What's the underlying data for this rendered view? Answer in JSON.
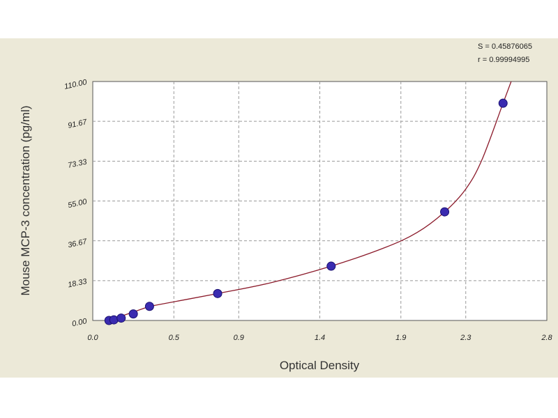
{
  "chart_data": {
    "type": "scatter",
    "xlabel": "Optical Density",
    "ylabel": "Mouse MCP-3 concentration (pg/ml)",
    "xlim": [
      0.0,
      2.8
    ],
    "ylim": [
      0.0,
      110.0
    ],
    "x_ticks": [
      "0.0",
      "0.5",
      "0.9",
      "1.4",
      "1.9",
      "2.3",
      "2.8"
    ],
    "y_ticks": [
      "0.00",
      "18.33",
      "36.67",
      "55.00",
      "73.33",
      "91.67",
      "110.00"
    ],
    "grid": true,
    "stats": {
      "s": "S = 0.45876065",
      "r": "r = 0.99994995"
    },
    "points": [
      {
        "x": 0.1,
        "y": 0.0
      },
      {
        "x": 0.13,
        "y": 0.3
      },
      {
        "x": 0.175,
        "y": 1.1
      },
      {
        "x": 0.25,
        "y": 3.0
      },
      {
        "x": 0.35,
        "y": 6.5
      },
      {
        "x": 0.77,
        "y": 12.4
      },
      {
        "x": 1.47,
        "y": 25.0
      },
      {
        "x": 2.17,
        "y": 50.0
      },
      {
        "x": 2.53,
        "y": 100.0
      }
    ],
    "curve": [
      {
        "x": 0.35,
        "y": 6.5
      },
      {
        "x": 0.77,
        "y": 12.4
      },
      {
        "x": 1.1,
        "y": 17.4
      },
      {
        "x": 1.47,
        "y": 25.0
      },
      {
        "x": 1.8,
        "y": 33.5
      },
      {
        "x": 2.0,
        "y": 40.5
      },
      {
        "x": 2.17,
        "y": 50.0
      },
      {
        "x": 2.3,
        "y": 60.5
      },
      {
        "x": 2.4,
        "y": 74.0
      },
      {
        "x": 2.53,
        "y": 100.0
      },
      {
        "x": 2.58,
        "y": 110.0
      }
    ],
    "colors": {
      "background": "#ece9d8",
      "plot": "#ffffff",
      "grid": "#999999",
      "curve": "#8b1a2a",
      "point": "#3a2bb0",
      "point_edge": "#1a1070"
    }
  }
}
